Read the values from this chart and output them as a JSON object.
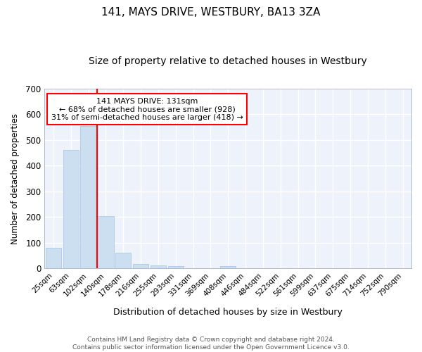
{
  "title": "141, MAYS DRIVE, WESTBURY, BA13 3ZA",
  "subtitle": "Size of property relative to detached houses in Westbury",
  "xlabel": "Distribution of detached houses by size in Westbury",
  "ylabel": "Number of detached properties",
  "categories": [
    "25sqm",
    "63sqm",
    "102sqm",
    "140sqm",
    "178sqm",
    "216sqm",
    "255sqm",
    "293sqm",
    "331sqm",
    "369sqm",
    "408sqm",
    "446sqm",
    "484sqm",
    "522sqm",
    "561sqm",
    "599sqm",
    "637sqm",
    "675sqm",
    "714sqm",
    "752sqm",
    "790sqm"
  ],
  "values": [
    80,
    460,
    553,
    205,
    60,
    17,
    12,
    8,
    0,
    0,
    8,
    0,
    0,
    0,
    0,
    0,
    0,
    0,
    0,
    0,
    0
  ],
  "bar_color": "#ccdff0",
  "bar_edge_color": "#a0c4e8",
  "annotation_line1": "141 MAYS DRIVE: 131sqm",
  "annotation_line2": "← 68% of detached houses are smaller (928)",
  "annotation_line3": "31% of semi-detached houses are larger (418) →",
  "ylim": [
    0,
    700
  ],
  "yticks": [
    0,
    100,
    200,
    300,
    400,
    500,
    600,
    700
  ],
  "footer1": "Contains HM Land Registry data © Crown copyright and database right 2024.",
  "footer2": "Contains public sector information licensed under the Open Government Licence v3.0.",
  "bg_color": "#ffffff",
  "plot_bg_color": "#eef2fa",
  "grid_color": "#ffffff",
  "title_fontsize": 11,
  "subtitle_fontsize": 10,
  "bar_width": 0.9,
  "red_line_xindex": 3
}
